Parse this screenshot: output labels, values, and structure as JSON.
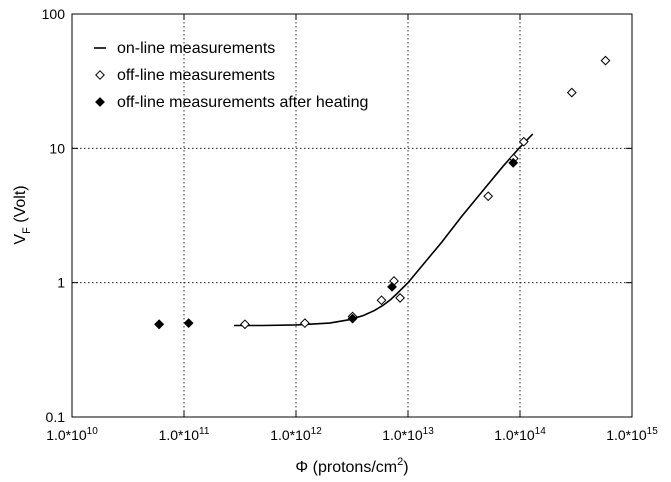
{
  "chart_data": {
    "type": "scatter",
    "x_scale": "log",
    "y_scale": "log",
    "xlim": [
      10000000000.0,
      1000000000000000.0
    ],
    "ylim": [
      0.1,
      100
    ],
    "grid": true,
    "legend_position": "top-left",
    "xlabel": {
      "main": "Φ (protons/cm",
      "sup": "2",
      "tail": ")"
    },
    "ylabel": {
      "main": "V",
      "sub": "F",
      "tail": " (Volt)"
    },
    "x_ticks": [
      {
        "value": 10000000000.0,
        "base": "1.0*10",
        "exp": "10"
      },
      {
        "value": 100000000000.0,
        "base": "1.0*10",
        "exp": "11"
      },
      {
        "value": 1000000000000.0,
        "base": "1.0*10",
        "exp": "12"
      },
      {
        "value": 10000000000000.0,
        "base": "1.0*10",
        "exp": "13"
      },
      {
        "value": 100000000000000.0,
        "base": "1.0*10",
        "exp": "14"
      },
      {
        "value": 1000000000000000.0,
        "base": "1.0*10",
        "exp": "15"
      }
    ],
    "y_ticks": [
      {
        "value": 0.1,
        "label": "0.1"
      },
      {
        "value": 1,
        "label": "1"
      },
      {
        "value": 10,
        "label": "10"
      },
      {
        "value": 100,
        "label": "100"
      }
    ],
    "series": [
      {
        "name": "on-line measurements",
        "type": "line",
        "x": [
          280000000000.0,
          500000000000.0,
          1000000000000.0,
          2000000000000.0,
          3000000000000.0,
          4000000000000.0,
          5000000000000.0,
          6000000000000.0,
          7000000000000.0,
          8000000000000.0,
          10000000000000.0,
          15000000000000.0,
          20000000000000.0,
          30000000000000.0,
          50000000000000.0,
          70000000000000.0,
          100000000000000.0,
          130000000000000.0
        ],
        "y": [
          0.48,
          0.48,
          0.485,
          0.5,
          0.53,
          0.57,
          0.62,
          0.68,
          0.75,
          0.83,
          1.0,
          1.5,
          2.0,
          3.1,
          5.2,
          7.3,
          10.2,
          12.8
        ]
      },
      {
        "name": "off-line measurements",
        "type": "scatter",
        "marker": "diamond-open",
        "x": [
          60000000000.0,
          350000000000.0,
          1200000000000.0,
          3200000000000.0,
          5800000000000.0,
          7500000000000.0,
          8500000000000.0,
          52000000000000.0,
          88000000000000.0,
          108000000000000.0,
          290000000000000.0,
          580000000000000.0
        ],
        "y": [
          0.49,
          0.49,
          0.5,
          0.56,
          0.74,
          1.03,
          0.77,
          4.4,
          8.4,
          11.2,
          26,
          45
        ]
      },
      {
        "name": "off-line measurements after heating",
        "type": "scatter",
        "marker": "diamond-filled",
        "x": [
          60000000000.0,
          110000000000.0,
          3200000000000.0,
          7200000000000.0,
          87000000000000.0
        ],
        "y": [
          0.49,
          0.5,
          0.54,
          0.93,
          7.8
        ]
      }
    ]
  }
}
